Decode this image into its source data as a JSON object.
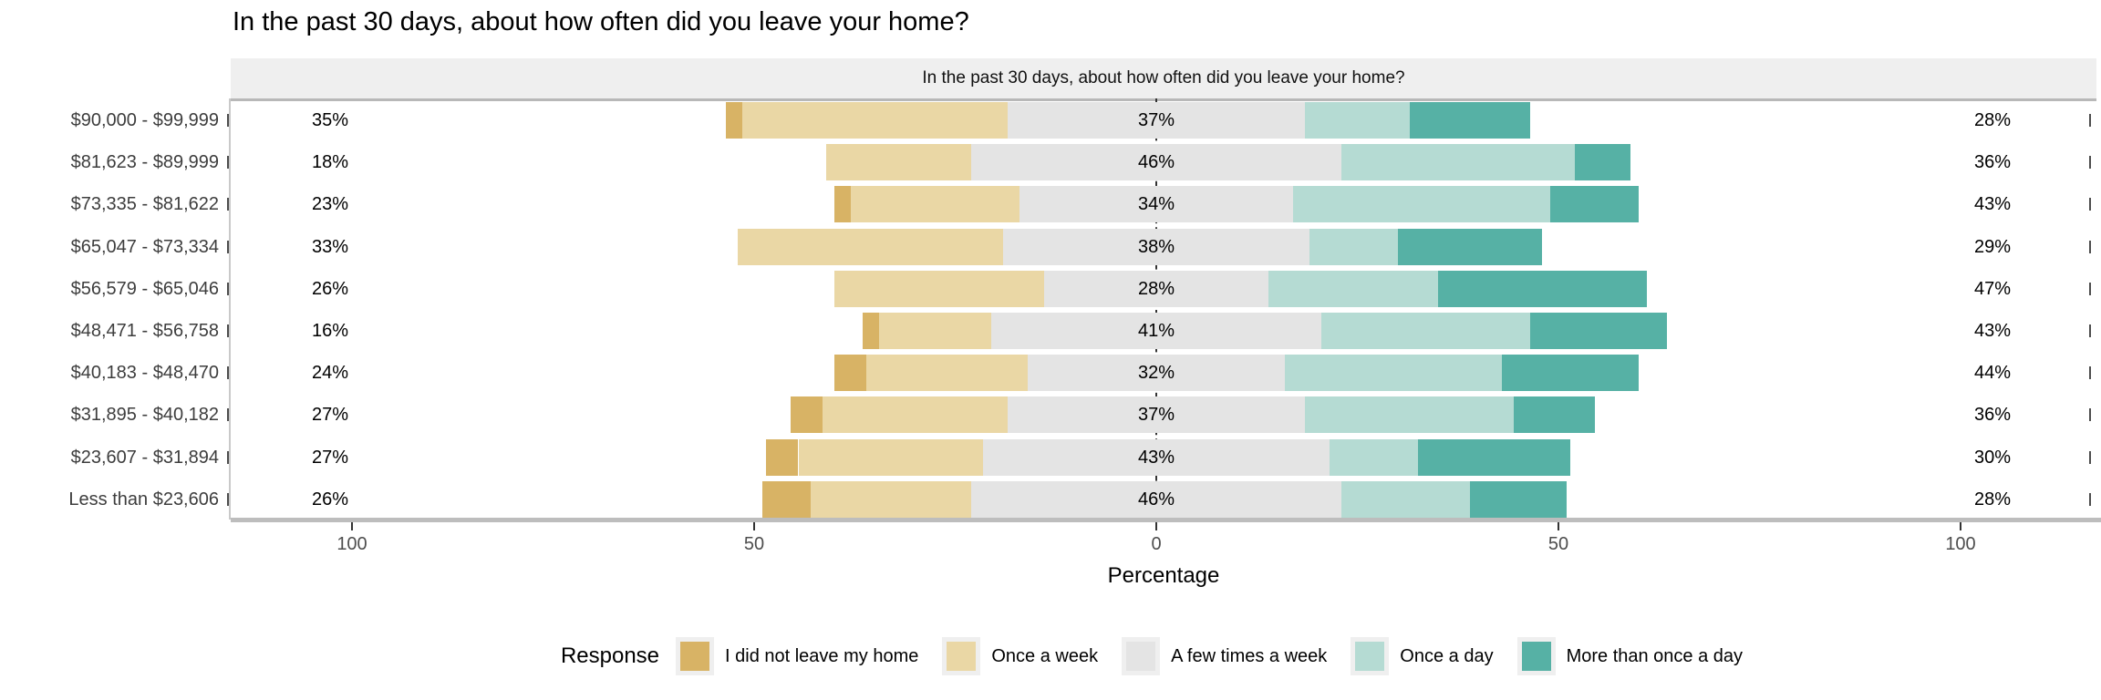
{
  "page": {
    "background": "#FFFFFF"
  },
  "chart_data": {
    "type": "bar",
    "subtype": "diverging-stacked-likert",
    "title": "In the past 30 days, about how often did you leave your home?",
    "panel_title": "In the past 30 days, about how often did you leave your home?",
    "xlabel": "Percentage",
    "x_tick_labels": [
      "100",
      "50",
      "0",
      "50",
      "100"
    ],
    "x_tick_values": [
      -100,
      -50,
      0,
      50,
      100
    ],
    "xlim": [
      -115,
      117
    ],
    "grid": "off",
    "zero_line": "dashed",
    "legend_title": "Response",
    "legend_position": "bottom",
    "categories": [
      "$90,000 - $99,999",
      "$81,623 - $89,999",
      "$73,335 - $81,622",
      "$65,047 - $73,334",
      "$56,579 - $65,046",
      "$48,471 - $56,758",
      "$40,183 - $48,470",
      "$31,895 - $40,182",
      "$23,607 - $31,894",
      "Less than $23,606"
    ],
    "series": [
      {
        "name": "I did not leave my home",
        "color": "#D8B365",
        "values": [
          2,
          0,
          2,
          0,
          0,
          2,
          4,
          4,
          4,
          6
        ]
      },
      {
        "name": "Once a week",
        "color": "#EAD7A5",
        "values": [
          33,
          18,
          21,
          33,
          26,
          14,
          20,
          23,
          23,
          20
        ]
      },
      {
        "name": "A few times a week",
        "color": "#E4E4E4",
        "values": [
          37,
          46,
          34,
          38,
          28,
          41,
          32,
          37,
          43,
          46
        ]
      },
      {
        "name": "Once a day",
        "color": "#B5DBD3",
        "values": [
          13,
          29,
          32,
          11,
          21,
          26,
          27,
          26,
          11,
          16
        ]
      },
      {
        "name": "More than once a day",
        "color": "#56B1A5",
        "values": [
          15,
          7,
          11,
          18,
          26,
          17,
          17,
          10,
          19,
          12
        ]
      }
    ],
    "row_labels": {
      "left": [
        "35%",
        "18%",
        "23%",
        "33%",
        "26%",
        "16%",
        "24%",
        "27%",
        "27%",
        "26%"
      ],
      "center": [
        "37%",
        "46%",
        "34%",
        "38%",
        "28%",
        "41%",
        "32%",
        "37%",
        "43%",
        "46%"
      ],
      "right": [
        "28%",
        "36%",
        "43%",
        "29%",
        "47%",
        "43%",
        "44%",
        "36%",
        "30%",
        "28%"
      ]
    }
  }
}
